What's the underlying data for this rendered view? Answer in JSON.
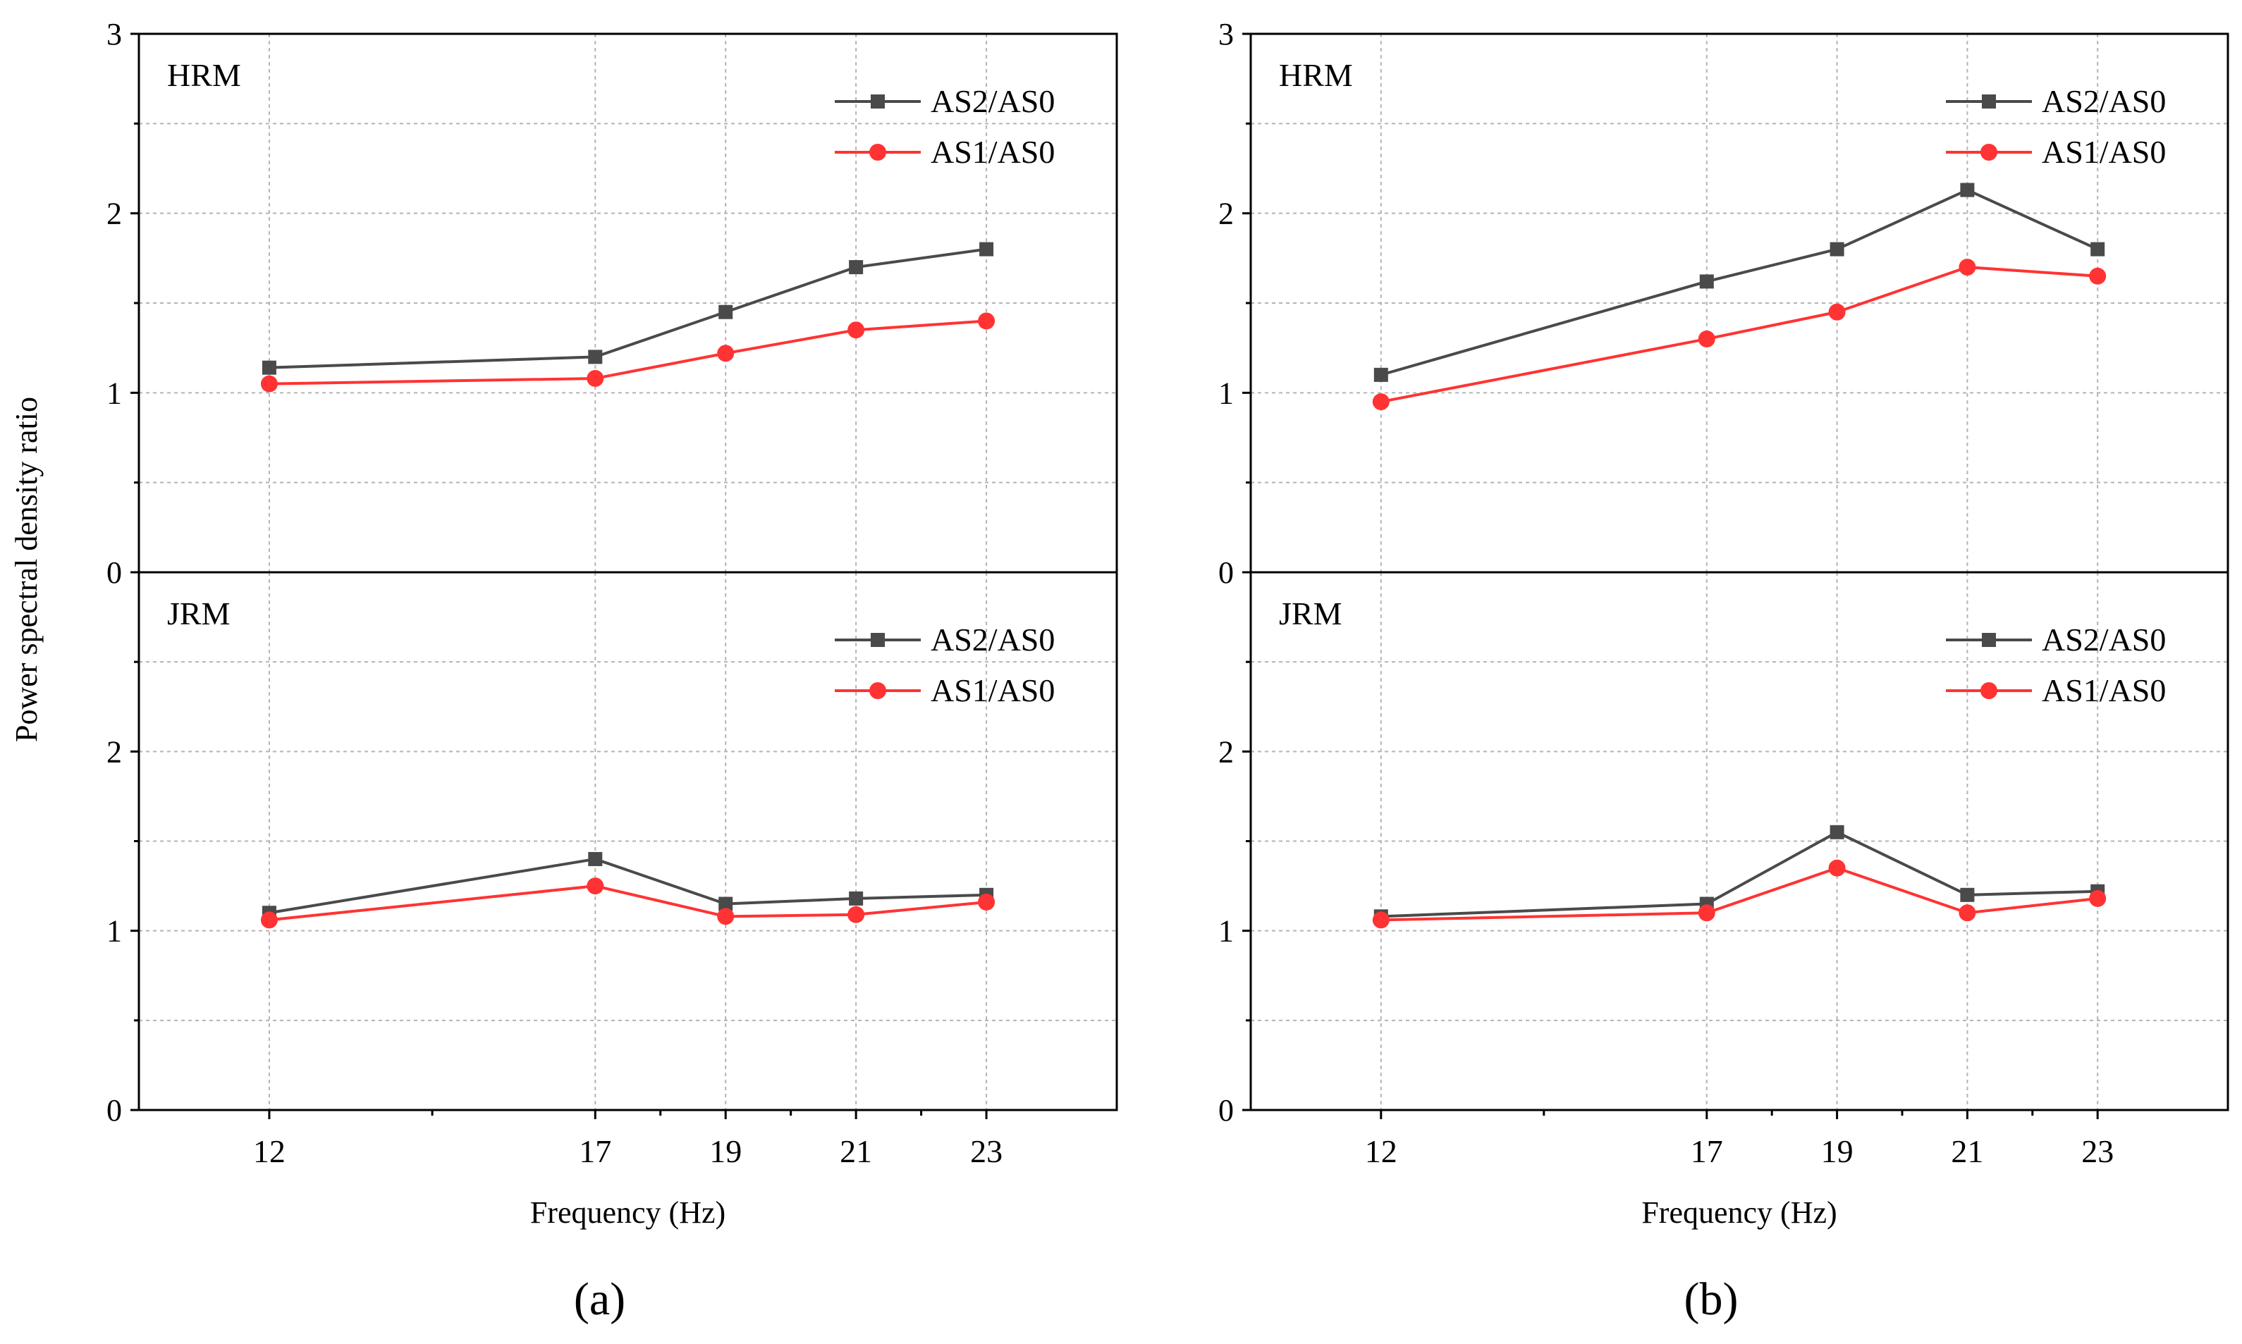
{
  "figure": {
    "y_axis_label": "Power spectral density ratio",
    "x_axis_label": "Frequency (Hz)"
  },
  "colors": {
    "as2": "#4a4a4a",
    "as1": "#ff3333",
    "grid": "#b4b4b4",
    "frame": "#000000"
  },
  "chart_data": [
    {
      "type": "line",
      "panel": "a",
      "panel_label": "(a)",
      "xlabel": "Frequency (Hz)",
      "ylabel": "Power spectral density ratio",
      "x_ticks": [
        12,
        17,
        19,
        21,
        23
      ],
      "xlim": [
        10,
        25
      ],
      "subplots": [
        {
          "title": "HRM",
          "ylim": [
            0,
            3
          ],
          "y_ticks": [
            0,
            1,
            2,
            3
          ],
          "legend": "top-right",
          "series": [
            {
              "name": "AS2/AS0",
              "marker": "square",
              "color_key": "as2",
              "x": [
                12,
                17,
                19,
                21,
                23
              ],
              "values": [
                1.14,
                1.2,
                1.45,
                1.7,
                1.8
              ]
            },
            {
              "name": "AS1/AS0",
              "marker": "circle",
              "color_key": "as1",
              "x": [
                12,
                17,
                19,
                21,
                23
              ],
              "values": [
                1.05,
                1.08,
                1.22,
                1.35,
                1.4
              ]
            }
          ]
        },
        {
          "title": "JRM",
          "ylim": [
            0,
            3
          ],
          "y_ticks": [
            0,
            1,
            2
          ],
          "legend": "top-right",
          "series": [
            {
              "name": "AS2/AS0",
              "marker": "square",
              "color_key": "as2",
              "x": [
                12,
                17,
                19,
                21,
                23
              ],
              "values": [
                1.1,
                1.4,
                1.15,
                1.18,
                1.2
              ]
            },
            {
              "name": "AS1/AS0",
              "marker": "circle",
              "color_key": "as1",
              "x": [
                12,
                17,
                19,
                21,
                23
              ],
              "values": [
                1.06,
                1.25,
                1.08,
                1.09,
                1.16
              ]
            }
          ]
        }
      ]
    },
    {
      "type": "line",
      "panel": "b",
      "panel_label": "(b)",
      "xlabel": "Frequency (Hz)",
      "ylabel": "",
      "x_ticks": [
        12,
        17,
        19,
        21,
        23
      ],
      "xlim": [
        10,
        25
      ],
      "subplots": [
        {
          "title": "HRM",
          "ylim": [
            0,
            3
          ],
          "y_ticks": [
            0,
            1,
            2,
            3
          ],
          "legend": "top-right",
          "series": [
            {
              "name": "AS2/AS0",
              "marker": "square",
              "color_key": "as2",
              "x": [
                12,
                17,
                19,
                21,
                23
              ],
              "values": [
                1.1,
                1.62,
                1.8,
                2.13,
                1.8
              ]
            },
            {
              "name": "AS1/AS0",
              "marker": "circle",
              "color_key": "as1",
              "x": [
                12,
                17,
                19,
                21,
                23
              ],
              "values": [
                0.95,
                1.3,
                1.45,
                1.7,
                1.65
              ]
            }
          ]
        },
        {
          "title": "JRM",
          "ylim": [
            0,
            3
          ],
          "y_ticks": [
            0,
            1,
            2
          ],
          "legend": "top-right",
          "series": [
            {
              "name": "AS2/AS0",
              "marker": "square",
              "color_key": "as2",
              "x": [
                12,
                17,
                19,
                21,
                23
              ],
              "values": [
                1.08,
                1.15,
                1.55,
                1.2,
                1.22
              ]
            },
            {
              "name": "AS1/AS0",
              "marker": "circle",
              "color_key": "as1",
              "x": [
                12,
                17,
                19,
                21,
                23
              ],
              "values": [
                1.06,
                1.1,
                1.35,
                1.1,
                1.18
              ]
            }
          ]
        }
      ]
    }
  ]
}
